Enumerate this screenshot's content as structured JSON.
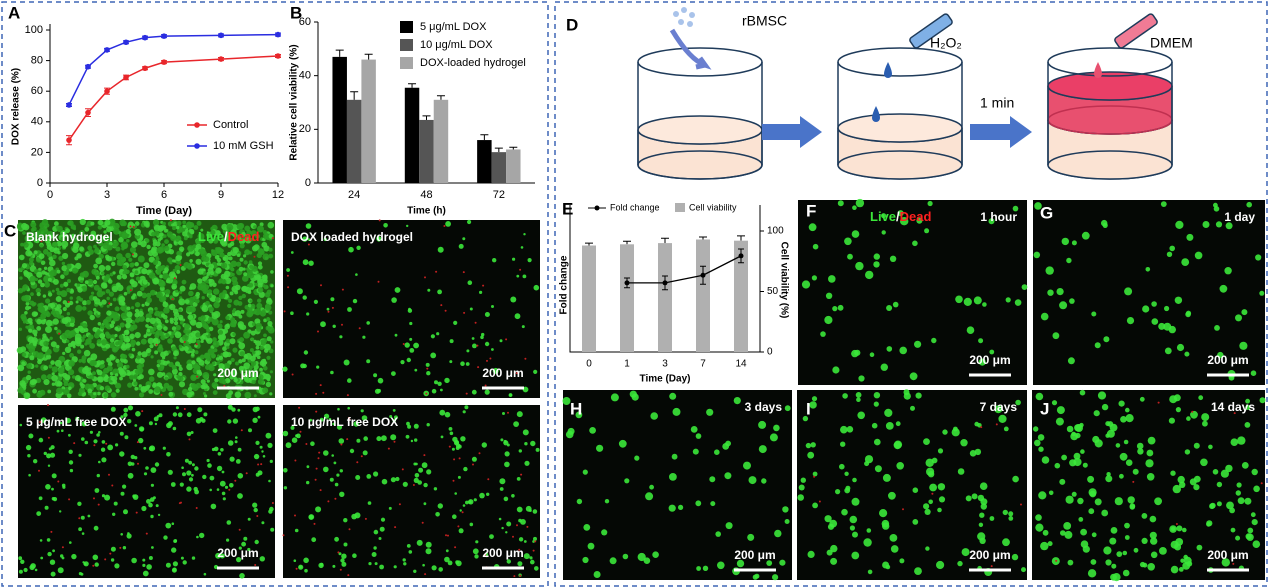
{
  "chart_data": [
    {
      "type": "line",
      "panel": "A",
      "x": [
        1,
        2,
        3,
        4,
        5,
        6,
        9,
        12
      ],
      "xlim": [
        0,
        12
      ],
      "xticks": [
        0,
        3,
        6,
        9,
        12
      ],
      "ylim": [
        0,
        100
      ],
      "yticks": [
        0,
        20,
        40,
        60,
        80,
        100
      ],
      "xlabel": "Time (Day)",
      "ylabel": "DOX release  (%)",
      "legend": "lower right",
      "series": [
        {
          "name": "Control",
          "color": "#e8262b",
          "values": [
            28,
            46,
            60,
            69,
            75,
            79,
            81,
            83
          ],
          "errors": [
            3,
            2.5,
            2,
            1.5,
            1,
            1,
            1,
            1
          ]
        },
        {
          "name": "10 mM GSH",
          "color": "#2a2de0",
          "values": [
            51,
            76,
            87,
            92,
            95,
            96,
            96.5,
            97
          ],
          "errors": [
            1,
            1,
            1,
            1,
            1,
            1,
            1,
            1
          ]
        }
      ]
    },
    {
      "type": "bar",
      "panel": "B",
      "categories": [
        "24",
        "48",
        "72"
      ],
      "ylim": [
        0,
        60
      ],
      "yticks": [
        0,
        20,
        40,
        60
      ],
      "xlabel": "Time (h)",
      "ylabel": "Relative cell viability (%)",
      "legend": "upper right",
      "series": [
        {
          "name": "5 μg/mL DOX",
          "color": "#000000",
          "values": [
            47,
            35.5,
            16
          ],
          "errors": [
            2.5,
            1.5,
            2
          ]
        },
        {
          "name": "10 μg/mL DOX",
          "color": "#555555",
          "values": [
            31,
            23.5,
            11.5
          ],
          "errors": [
            3,
            1.5,
            1.5
          ]
        },
        {
          "name": "DOX-loaded hydrogel",
          "color": "#a6a6a6",
          "values": [
            46,
            31,
            12.5
          ],
          "errors": [
            2,
            1.5,
            0.8
          ]
        }
      ]
    },
    {
      "type": "combo",
      "panel": "E",
      "categories": [
        "0",
        "1",
        "3",
        "7",
        "14"
      ],
      "ylim": [
        0,
        1.75
      ],
      "y2lim": [
        0,
        100
      ],
      "y2ticks": [
        0,
        50,
        100
      ],
      "xlabel": "Time (Day)",
      "ylabel": "Fold change",
      "y2label": "Cell viability  (%)",
      "legend": "top",
      "series": [
        {
          "name": "Fold change",
          "color": "#000000",
          "values": [
            null,
            1.0,
            1.0,
            1.11,
            1.39
          ],
          "errors": [
            null,
            0.07,
            0.1,
            0.13,
            0.1
          ]
        },
        {
          "name": "Cell viability",
          "color": "#b0b0b0",
          "axis": "y2",
          "values": [
            88,
            89,
            90,
            93,
            92
          ],
          "errors": [
            2,
            2.5,
            4,
            2,
            4
          ]
        }
      ]
    }
  ],
  "panel_labels": [
    "A",
    "B",
    "C",
    "D",
    "E",
    "F",
    "G",
    "H",
    "I",
    "J"
  ],
  "stain": {
    "live": "Live",
    "separator": "/",
    "dead": "Dead"
  },
  "images": [
    {
      "label": "Blank hydrogel",
      "scale_bar": "200 μm"
    },
    {
      "label": "DOX loaded hydrogel",
      "scale_bar": "200 μm"
    },
    {
      "label": "5 μg/mL free DOX",
      "scale_bar": "200 μm"
    },
    {
      "label": "10 μg/mL free DOX",
      "scale_bar": "200 μm"
    },
    {
      "label": "1 hour",
      "scale_bar": "200 μm"
    },
    {
      "label": "1 day",
      "scale_bar": "200 μm"
    },
    {
      "label": "3 days",
      "scale_bar": "200 μm"
    },
    {
      "label": "7 days",
      "scale_bar": "200 μm"
    },
    {
      "label": "14 days",
      "scale_bar": "200 μm"
    }
  ],
  "diagram": {
    "cells": "rBMSC",
    "reagent": "H₂O₂",
    "wait": "1 min",
    "medium": "DMEM"
  }
}
